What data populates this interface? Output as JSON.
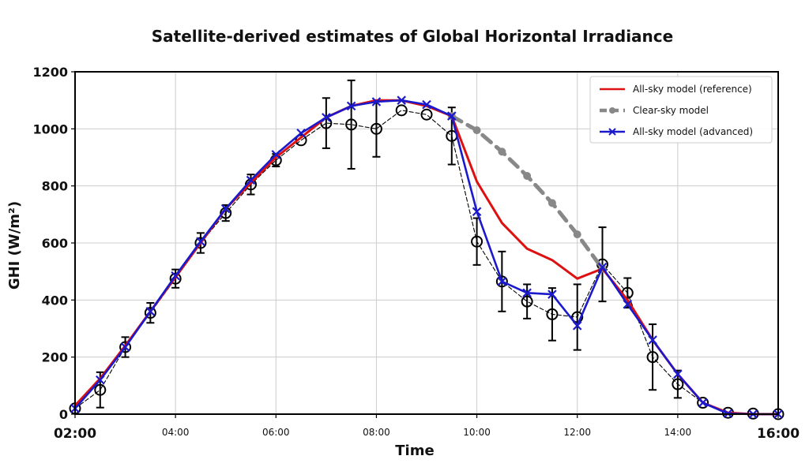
{
  "chart_data": {
    "type": "line",
    "title": "Satellite-derived estimates of Global Horizontal Irradiance",
    "xlabel": "Time",
    "ylabel": "GHI (W/m²)",
    "xlim": [
      "02:00",
      "16:00"
    ],
    "ylim": [
      0,
      1200
    ],
    "grid": true,
    "legend_position": "top-right",
    "x_ticks": [
      "02:00",
      "04:00",
      "06:00",
      "08:00",
      "10:00",
      "12:00",
      "14:00",
      "16:00"
    ],
    "y_ticks": [
      0,
      200,
      400,
      600,
      800,
      1000,
      1200
    ],
    "series": [
      {
        "name": "All-sky model (reference)",
        "color": "#dd1111",
        "style": "solid",
        "marker": "none",
        "x": [
          "02:00",
          "02:30",
          "03:00",
          "03:30",
          "04:00",
          "04:30",
          "05:00",
          "05:30",
          "06:00",
          "06:30",
          "07:00",
          "07:30",
          "08:00",
          "08:30",
          "09:00",
          "09:30",
          "10:00",
          "10:30",
          "11:00",
          "11:30",
          "12:00",
          "12:30",
          "13:00",
          "13:30",
          "14:00",
          "14:30",
          "15:00",
          "15:30",
          "16:00"
        ],
        "y": [
          30,
          125,
          240,
          360,
          480,
          600,
          720,
          810,
          900,
          970,
          1040,
          1080,
          1100,
          1100,
          1080,
          1045,
          815,
          670,
          580,
          540,
          475,
          510,
          400,
          260,
          140,
          40,
          5,
          0,
          0
        ]
      },
      {
        "name": "Clear-sky model",
        "color": "#888888",
        "style": "dashed",
        "marker": "dot",
        "x": [
          "09:30",
          "10:00",
          "10:30",
          "11:00",
          "11:30",
          "12:00",
          "12:30"
        ],
        "y": [
          1045,
          995,
          920,
          835,
          740,
          630,
          510
        ]
      },
      {
        "name": "All-sky model (advanced)",
        "color": "#1a1acc",
        "style": "solid",
        "marker": "x",
        "x": [
          "02:00",
          "02:30",
          "03:00",
          "03:30",
          "04:00",
          "04:30",
          "05:00",
          "05:30",
          "06:00",
          "06:30",
          "07:00",
          "07:30",
          "08:00",
          "08:30",
          "09:00",
          "09:30",
          "10:00",
          "10:30",
          "11:00",
          "11:30",
          "12:00",
          "12:30",
          "13:00",
          "13:30",
          "14:00",
          "14:30",
          "15:00",
          "15:30",
          "16:00"
        ],
        "y": [
          20,
          120,
          235,
          360,
          485,
          605,
          720,
          820,
          910,
          985,
          1040,
          1080,
          1095,
          1100,
          1085,
          1045,
          710,
          465,
          425,
          420,
          310,
          515,
          385,
          260,
          140,
          40,
          2,
          0,
          0
        ]
      },
      {
        "name": "",
        "color": "#000000",
        "style": "dashed",
        "marker": "circle",
        "x": [
          "02:00",
          "02:30",
          "03:00",
          "03:30",
          "04:00",
          "04:30",
          "05:00",
          "05:30",
          "06:00",
          "06:30",
          "07:00",
          "07:30",
          "08:00",
          "08:30",
          "09:00",
          "09:30",
          "10:00",
          "10:30",
          "11:00",
          "11:30",
          "12:00",
          "12:30",
          "13:00",
          "13:30",
          "14:00",
          "14:30",
          "15:00",
          "15:30",
          "16:00"
        ],
        "y": [
          20,
          85,
          235,
          355,
          475,
          600,
          705,
          805,
          890,
          960,
          1020,
          1015,
          1000,
          1065,
          1050,
          975,
          605,
          465,
          395,
          350,
          340,
          525,
          425,
          200,
          105,
          40,
          5,
          2,
          0
        ],
        "err": [
          0,
          62,
          35,
          35,
          32,
          35,
          28,
          35,
          22,
          0,
          88,
          155,
          98,
          0,
          0,
          100,
          82,
          105,
          60,
          92,
          115,
          130,
          52,
          115,
          48,
          0,
          0,
          0,
          0
        ]
      }
    ]
  }
}
